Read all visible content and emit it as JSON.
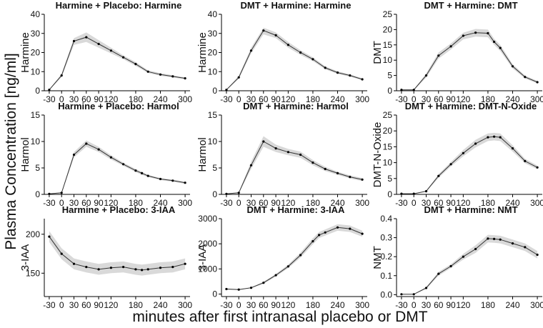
{
  "figure": {
    "global_ylabel": "Plasma Concentration [ng/ml]",
    "global_xlabel": "minutes after first intranasal placebo or DMT",
    "colors": {
      "band": "#d9d9d9",
      "line": "#333333",
      "point": "#000000",
      "axis": "#000000"
    }
  },
  "chart_data": [
    {
      "type": "line",
      "title": "Harmine + Placebo: Harmine",
      "ylabel": "Harmine",
      "x": [
        -30,
        0,
        30,
        60,
        90,
        120,
        150,
        180,
        210,
        240,
        270,
        300
      ],
      "y": [
        0.5,
        8,
        26,
        28,
        24.5,
        21,
        17.5,
        14,
        10,
        8.5,
        7.5,
        6.5
      ],
      "lower": [
        0.3,
        7.2,
        24,
        25.5,
        22.5,
        19.5,
        16.5,
        13,
        9.3,
        7.8,
        6.9,
        6
      ],
      "upper": [
        0.7,
        8.8,
        27.5,
        30.5,
        26.5,
        22.5,
        18.5,
        15,
        10.7,
        9.2,
        8.1,
        7
      ],
      "yticks": [
        0,
        10,
        20,
        30,
        40
      ],
      "ylim": [
        0,
        40
      ],
      "xticks": [
        -30,
        0,
        30,
        60,
        90,
        120,
        180,
        240,
        300
      ]
    },
    {
      "type": "line",
      "title": "DMT + Harmine: Harmine",
      "ylabel": "Harmine",
      "x": [
        -30,
        0,
        30,
        60,
        90,
        120,
        150,
        180,
        210,
        240,
        270,
        300
      ],
      "y": [
        0.5,
        7,
        21,
        31.5,
        29,
        24,
        20,
        16.5,
        12,
        9.5,
        8,
        6
      ],
      "lower": [
        0.3,
        6.2,
        19.5,
        29.5,
        27.5,
        22.5,
        18.8,
        15.5,
        11.2,
        8.8,
        7.4,
        5.5
      ],
      "upper": [
        0.7,
        7.8,
        22.5,
        33,
        30.5,
        25.5,
        21.2,
        17.5,
        12.8,
        10.2,
        8.6,
        6.5
      ],
      "yticks": [
        0,
        10,
        20,
        30,
        40
      ],
      "ylim": [
        0,
        40
      ],
      "xticks": [
        -30,
        0,
        30,
        60,
        90,
        120,
        180,
        240,
        300
      ]
    },
    {
      "type": "line",
      "title": "DMT + Harmine: DMT",
      "ylabel": "DMT",
      "x": [
        -30,
        0,
        30,
        60,
        90,
        120,
        150,
        180,
        195,
        210,
        240,
        270,
        300
      ],
      "y": [
        0.3,
        0.3,
        5,
        11.5,
        14.5,
        18,
        19,
        18.8,
        16,
        14,
        8,
        4.5,
        2.8
      ],
      "lower": [
        0.2,
        0.2,
        4.3,
        10.5,
        13.5,
        16.8,
        17.7,
        17.5,
        15,
        13,
        7.3,
        4,
        2.4
      ],
      "upper": [
        0.4,
        0.4,
        5.7,
        12.5,
        15.5,
        19,
        20.2,
        20,
        17,
        15,
        8.7,
        5,
        3.2
      ],
      "yticks": [
        0,
        5,
        10,
        15,
        20,
        25
      ],
      "ylim": [
        0,
        25
      ],
      "xticks": [
        -30,
        0,
        30,
        60,
        90,
        120,
        180,
        240,
        300
      ]
    },
    {
      "type": "line",
      "title": "Harmine + Placebo: Harmol",
      "ylabel": "Harmol",
      "x": [
        -30,
        0,
        30,
        60,
        90,
        120,
        150,
        180,
        195,
        210,
        240,
        270,
        300
      ],
      "y": [
        0.1,
        0.3,
        7.5,
        9.6,
        8.5,
        7,
        5.7,
        4.5,
        4,
        3.5,
        2.9,
        2.6,
        2.2
      ],
      "lower": [
        0.05,
        0.2,
        7,
        9,
        8,
        6.6,
        5.4,
        4.2,
        3.7,
        3.3,
        2.7,
        2.4,
        2
      ],
      "upper": [
        0.15,
        0.4,
        8,
        10.2,
        9,
        7.4,
        6,
        4.8,
        4.3,
        3.7,
        3.1,
        2.8,
        2.4
      ],
      "yticks": [
        0,
        5,
        10,
        15
      ],
      "ylim": [
        0,
        15
      ],
      "xticks": [
        -30,
        0,
        30,
        60,
        90,
        120,
        180,
        240,
        300
      ]
    },
    {
      "type": "line",
      "title": "DMT + Harmine: Harmol",
      "ylabel": "Harmol",
      "x": [
        -30,
        0,
        30,
        60,
        90,
        120,
        150,
        180,
        210,
        240,
        270,
        300
      ],
      "y": [
        0.1,
        0.3,
        5.5,
        10,
        8.7,
        8,
        7.5,
        6,
        4.8,
        4,
        3.3,
        2.8
      ],
      "lower": [
        0.05,
        0.2,
        4.8,
        9,
        8,
        7.4,
        6.9,
        5.5,
        4.4,
        3.7,
        3,
        2.5
      ],
      "upper": [
        0.15,
        0.4,
        6.2,
        11,
        9.4,
        8.6,
        8.1,
        6.5,
        5.2,
        4.3,
        3.6,
        3.1
      ],
      "yticks": [
        0,
        5,
        10,
        15
      ],
      "ylim": [
        0,
        15
      ],
      "xticks": [
        -30,
        0,
        30,
        60,
        90,
        120,
        180,
        240,
        300
      ]
    },
    {
      "type": "line",
      "title": "DMT + Harmine: DMT-N-Oxide",
      "ylabel": "DMT-N-Oxide",
      "x": [
        -30,
        0,
        30,
        60,
        90,
        120,
        150,
        180,
        195,
        210,
        240,
        270,
        300
      ],
      "y": [
        0.2,
        0.2,
        1,
        5.8,
        9.5,
        13,
        16,
        18,
        18.2,
        18,
        14.5,
        10.5,
        8.5
      ],
      "lower": [
        0.1,
        0.1,
        0.8,
        5.2,
        8.8,
        12,
        14.8,
        16.8,
        17,
        16.8,
        13.5,
        9.8,
        7.9
      ],
      "upper": [
        0.3,
        0.3,
        1.2,
        6.4,
        10.2,
        14,
        17.2,
        19.2,
        19.4,
        19.2,
        15.5,
        11.2,
        9.1
      ],
      "yticks": [
        0,
        5,
        10,
        15,
        20,
        25
      ],
      "ylim": [
        0,
        25
      ],
      "xticks": [
        -30,
        0,
        30,
        60,
        90,
        120,
        180,
        240,
        300
      ]
    },
    {
      "type": "line",
      "title": "Harmine + Placebo: 3-IAA",
      "ylabel": "3-IAA",
      "x": [
        -30,
        0,
        30,
        60,
        90,
        120,
        150,
        180,
        195,
        210,
        240,
        270,
        300
      ],
      "y": [
        197,
        175,
        162,
        158,
        155,
        157,
        158,
        155,
        154,
        155,
        157,
        158,
        162
      ],
      "lower": [
        190,
        168,
        155,
        151,
        148,
        150,
        151,
        148,
        147,
        148,
        150,
        151,
        155
      ],
      "upper": [
        204,
        182,
        169,
        165,
        162,
        164,
        165,
        162,
        161,
        162,
        164,
        165,
        169
      ],
      "yticks": [
        200,
        150
      ],
      "ylim": [
        120,
        220
      ],
      "xticks": [
        -30,
        0,
        30,
        60,
        90,
        120,
        180,
        240,
        300
      ]
    },
    {
      "type": "line",
      "title": "DMT + Harmine: 3-IAA",
      "ylabel": "3-IAA",
      "x": [
        -30,
        0,
        30,
        60,
        90,
        120,
        150,
        180,
        195,
        210,
        240,
        270,
        300
      ],
      "y": [
        200,
        180,
        250,
        450,
        750,
        1100,
        1550,
        2100,
        2350,
        2450,
        2650,
        2600,
        2400
      ],
      "lower": [
        180,
        165,
        230,
        410,
        700,
        1030,
        1450,
        1980,
        2230,
        2330,
        2520,
        2470,
        2280
      ],
      "upper": [
        220,
        195,
        270,
        490,
        800,
        1170,
        1650,
        2220,
        2470,
        2570,
        2780,
        2730,
        2520
      ],
      "yticks": [
        0,
        1000,
        2000,
        3000
      ],
      "ylim": [
        -100,
        3000
      ],
      "xticks": [
        -30,
        0,
        30,
        60,
        90,
        120,
        180,
        240,
        300
      ]
    },
    {
      "type": "line",
      "title": "DMT + Harmine: NMT",
      "ylabel": "NMT",
      "x": [
        -30,
        0,
        30,
        60,
        90,
        120,
        150,
        180,
        195,
        210,
        240,
        270,
        300
      ],
      "y": [
        0.002,
        0.002,
        0.035,
        0.11,
        0.15,
        0.2,
        0.24,
        0.295,
        0.293,
        0.29,
        0.27,
        0.25,
        0.21
      ],
      "lower": [
        0.001,
        0.001,
        0.03,
        0.1,
        0.14,
        0.185,
        0.22,
        0.275,
        0.273,
        0.27,
        0.25,
        0.23,
        0.19
      ],
      "upper": [
        0.003,
        0.003,
        0.04,
        0.12,
        0.16,
        0.215,
        0.26,
        0.315,
        0.313,
        0.31,
        0.29,
        0.27,
        0.23
      ],
      "yticks": [
        0.0,
        0.1,
        0.2,
        0.3,
        0.4
      ],
      "ylim": [
        -0.01,
        0.4
      ],
      "xticks": [
        -30,
        0,
        30,
        60,
        90,
        120,
        180,
        240,
        300
      ]
    }
  ]
}
